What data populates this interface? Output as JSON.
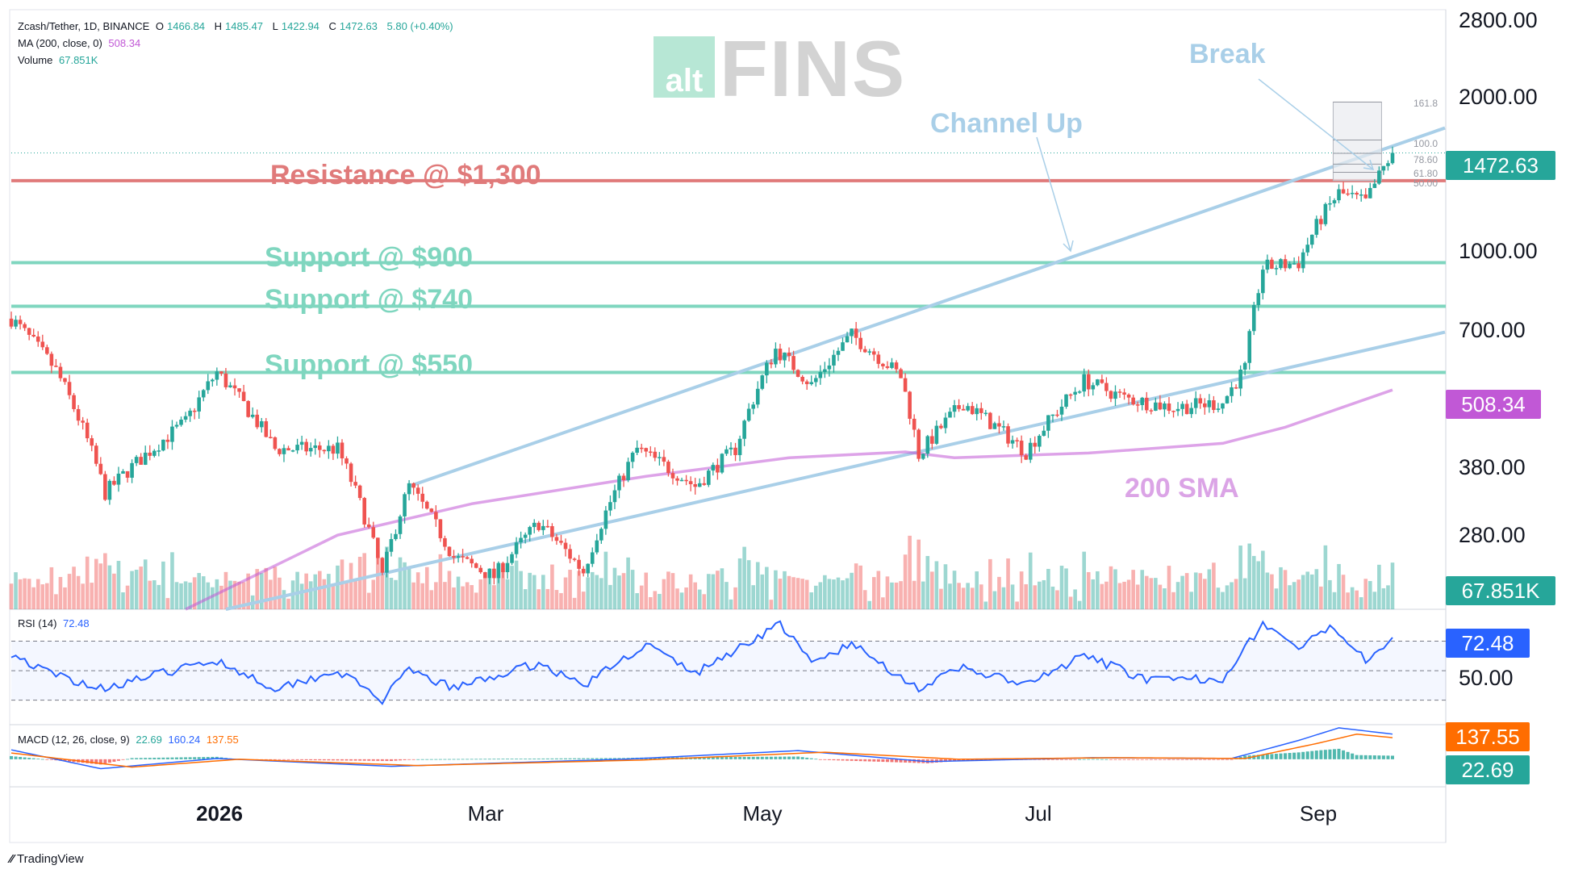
{
  "header": {
    "symbol": "Zcash/Tether, 1D, BINANCE",
    "o_label": "O",
    "o": "1466.84",
    "h_label": "H",
    "h": "1485.47",
    "l_label": "L",
    "l": "1422.94",
    "c_label": "C",
    "c": "1472.63",
    "change": "5.80 (+0.40%)",
    "ma_label": "MA (200, close, 0)",
    "ma_value": "508.34",
    "volume_label": "Volume",
    "volume_value": "67.851K"
  },
  "watermark": {
    "alt": "alt",
    "fins": "FINS"
  },
  "annotations": {
    "break": "Break",
    "channel": "Channel Up",
    "resistance": "Resistance @ $1,300",
    "support_900": "Support @ $900",
    "support_740": "Support @ $740",
    "support_550": "Support @ $550",
    "sma": "200 SMA"
  },
  "price_axis": {
    "ticks": [
      "2800.00",
      "2000.00",
      "1000.00",
      "700.00",
      "380.00",
      "280.00"
    ],
    "last_price_tag": "1472.63",
    "ma_tag": "508.34",
    "volume_tag": "67.851K"
  },
  "fib_labels": [
    "161.8",
    "100.0",
    "78.60",
    "61.80",
    "50.00"
  ],
  "rsi": {
    "label": "RSI (14)",
    "value": "72.48",
    "tag": "72.48",
    "axis_tick": "50.00"
  },
  "macd": {
    "label": "MACD (12, 26, close, 9)",
    "v1": "22.69",
    "v2": "160.24",
    "v3": "137.55",
    "tag_signal": "137.55",
    "tag_hist": "22.69"
  },
  "time_axis": [
    "2026",
    "Mar",
    "May",
    "Jul",
    "Sep"
  ],
  "footer": {
    "brand": "TradingView"
  },
  "colors": {
    "up": "#26a69a",
    "down": "#ef5350",
    "ma": "#c158d6",
    "channel": "#a9cfe8",
    "support": "#7fd6bf",
    "resistance": "#e07a7a",
    "rsi": "#2962ff",
    "macd": "#2962ff",
    "signal": "#ff6d00"
  },
  "chart_data": {
    "type": "candlestick",
    "title": "Zcash/Tether, 1D, BINANCE",
    "y_scale": "log",
    "ylim": [
      190,
      2800
    ],
    "x_range": [
      "2025-11-15",
      "2026-09-20"
    ],
    "keypoints": [
      {
        "date": "2025-11-15",
        "close": 700
      },
      {
        "date": "2025-11-25",
        "close": 555
      },
      {
        "date": "2025-12-06",
        "close": 320
      },
      {
        "date": "2025-12-24",
        "close": 440
      },
      {
        "date": "2025-12-31",
        "close": 550
      },
      {
        "date": "2026-01-13",
        "close": 390
      },
      {
        "date": "2026-01-27",
        "close": 390
      },
      {
        "date": "2026-02-06",
        "close": 220
      },
      {
        "date": "2026-02-12",
        "close": 330
      },
      {
        "date": "2026-02-22",
        "close": 240
      },
      {
        "date": "2026-03-03",
        "close": 220
      },
      {
        "date": "2026-03-13",
        "close": 280
      },
      {
        "date": "2026-03-23",
        "close": 225
      },
      {
        "date": "2026-04-04",
        "close": 390
      },
      {
        "date": "2026-04-17",
        "close": 330
      },
      {
        "date": "2026-04-26",
        "close": 390
      },
      {
        "date": "2026-05-05",
        "close": 610
      },
      {
        "date": "2026-05-13",
        "close": 520
      },
      {
        "date": "2026-05-22",
        "close": 650
      },
      {
        "date": "2026-06-02",
        "close": 540
      },
      {
        "date": "2026-06-06",
        "close": 380
      },
      {
        "date": "2026-06-16",
        "close": 480
      },
      {
        "date": "2026-06-30",
        "close": 385
      },
      {
        "date": "2026-07-13",
        "close": 530
      },
      {
        "date": "2026-07-22",
        "close": 490
      },
      {
        "date": "2026-08-02",
        "close": 470
      },
      {
        "date": "2026-08-13",
        "close": 480
      },
      {
        "date": "2026-08-18",
        "close": 560
      },
      {
        "date": "2026-08-22",
        "close": 880
      },
      {
        "date": "2026-08-30",
        "close": 900
      },
      {
        "date": "2026-09-04",
        "close": 1100
      },
      {
        "date": "2026-09-08",
        "close": 1230
      },
      {
        "date": "2026-09-14",
        "close": 1180
      },
      {
        "date": "2026-09-20",
        "close": 1472.63
      }
    ],
    "ma200": [
      {
        "date": "2025-12-24",
        "value": 190
      },
      {
        "date": "2026-01-27",
        "value": 265
      },
      {
        "date": "2026-02-26",
        "value": 305
      },
      {
        "date": "2026-04-06",
        "value": 345
      },
      {
        "date": "2026-05-08",
        "value": 375
      },
      {
        "date": "2026-06-03",
        "value": 385
      },
      {
        "date": "2026-06-14",
        "value": 375
      },
      {
        "date": "2026-07-14",
        "value": 383
      },
      {
        "date": "2026-08-13",
        "value": 400
      },
      {
        "date": "2026-08-27",
        "value": 430
      },
      {
        "date": "2026-09-20",
        "value": 508.34
      }
    ],
    "levels": [
      {
        "name": "Resistance @ $1,300",
        "value": 1300
      },
      {
        "name": "Support @ $900",
        "value": 900
      },
      {
        "name": "Support @ $740",
        "value": 740
      },
      {
        "name": "Support @ $550",
        "value": 550
      }
    ],
    "channel_up": {
      "upper": [
        {
          "date": "2026-02-12",
          "value": 330
        },
        {
          "date": "2026-09-20",
          "value": 1600
        }
      ],
      "lower": [
        {
          "date": "2026-01-02",
          "value": 190
        },
        {
          "date": "2026-09-20",
          "value": 640
        }
      ]
    },
    "rsi": {
      "ylim": [
        15,
        90
      ],
      "levels": [
        70,
        50,
        30
      ],
      "keypoints": [
        {
          "date": "2025-11-15",
          "value": 62
        },
        {
          "date": "2025-11-22",
          "value": 50
        },
        {
          "date": "2025-12-05",
          "value": 38
        },
        {
          "date": "2025-12-24",
          "value": 52
        },
        {
          "date": "2025-12-31",
          "value": 57
        },
        {
          "date": "2026-01-13",
          "value": 38
        },
        {
          "date": "2026-01-27",
          "value": 50
        },
        {
          "date": "2026-02-06",
          "value": 30
        },
        {
          "date": "2026-02-12",
          "value": 50
        },
        {
          "date": "2026-02-22",
          "value": 38
        },
        {
          "date": "2026-03-13",
          "value": 55
        },
        {
          "date": "2026-03-23",
          "value": 40
        },
        {
          "date": "2026-04-06",
          "value": 68
        },
        {
          "date": "2026-04-17",
          "value": 48
        },
        {
          "date": "2026-05-06",
          "value": 82
        },
        {
          "date": "2026-05-13",
          "value": 55
        },
        {
          "date": "2026-05-22",
          "value": 68
        },
        {
          "date": "2026-06-06",
          "value": 38
        },
        {
          "date": "2026-06-16",
          "value": 52
        },
        {
          "date": "2026-06-30",
          "value": 40
        },
        {
          "date": "2026-07-13",
          "value": 60
        },
        {
          "date": "2026-07-28",
          "value": 43
        },
        {
          "date": "2026-08-13",
          "value": 45
        },
        {
          "date": "2026-08-22",
          "value": 82
        },
        {
          "date": "2026-08-30",
          "value": 65
        },
        {
          "date": "2026-09-07",
          "value": 80
        },
        {
          "date": "2026-09-14",
          "value": 58
        },
        {
          "date": "2026-09-20",
          "value": 72.48
        }
      ]
    },
    "macd": {
      "ylim": [
        -160,
        210
      ],
      "macd_keypoints": [
        {
          "date": "2025-11-15",
          "value": 60
        },
        {
          "date": "2025-12-05",
          "value": -60
        },
        {
          "date": "2025-12-31",
          "value": 5
        },
        {
          "date": "2026-02-08",
          "value": -45
        },
        {
          "date": "2026-04-01",
          "value": 0
        },
        {
          "date": "2026-05-10",
          "value": 55
        },
        {
          "date": "2026-06-08",
          "value": -15
        },
        {
          "date": "2026-07-15",
          "value": 10
        },
        {
          "date": "2026-08-15",
          "value": 5
        },
        {
          "date": "2026-08-30",
          "value": 120
        },
        {
          "date": "2026-09-08",
          "value": 200
        },
        {
          "date": "2026-09-20",
          "value": 160.24
        }
      ],
      "signal_keypoints": [
        {
          "date": "2025-11-15",
          "value": 40
        },
        {
          "date": "2025-12-12",
          "value": -50
        },
        {
          "date": "2026-01-05",
          "value": 0
        },
        {
          "date": "2026-02-14",
          "value": -40
        },
        {
          "date": "2026-04-05",
          "value": -5
        },
        {
          "date": "2026-05-16",
          "value": 45
        },
        {
          "date": "2026-06-15",
          "value": 0
        },
        {
          "date": "2026-07-20",
          "value": 10
        },
        {
          "date": "2026-08-18",
          "value": 5
        },
        {
          "date": "2026-09-03",
          "value": 100
        },
        {
          "date": "2026-09-12",
          "value": 160
        },
        {
          "date": "2026-09-20",
          "value": 137.55
        }
      ]
    }
  }
}
